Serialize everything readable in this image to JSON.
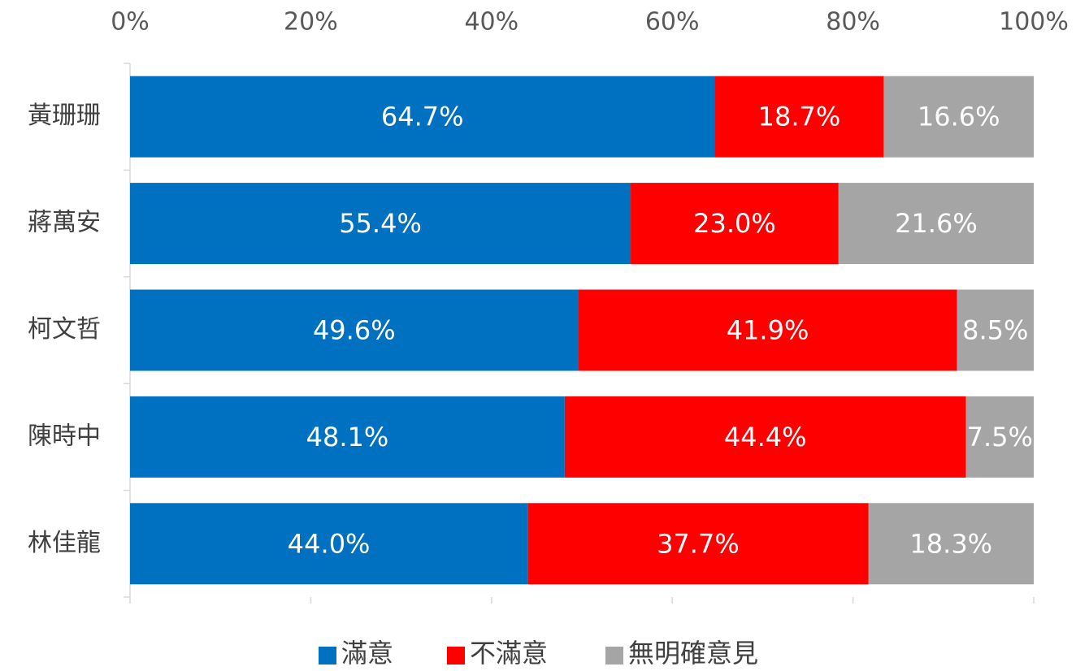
{
  "chart_data": {
    "type": "bar",
    "orientation": "horizontal",
    "stacked": true,
    "categories": [
      "黃珊珊",
      "蔣萬安",
      "柯文哲",
      "陳時中",
      "林佳龍"
    ],
    "series": [
      {
        "name": "滿意",
        "color": "#0070c0",
        "values": [
          64.7,
          55.4,
          49.6,
          48.1,
          44.0
        ],
        "value_labels": [
          "64.7%",
          "55.4%",
          "49.6%",
          "48.1%",
          "44.0%"
        ]
      },
      {
        "name": "不滿意",
        "color": "#ff0000",
        "values": [
          18.7,
          23.0,
          41.9,
          44.4,
          37.7
        ],
        "value_labels": [
          "18.7%",
          "23.0%",
          "41.9%",
          "44.4%",
          "37.7%"
        ]
      },
      {
        "name": "無明確意見",
        "color": "#a5a5a5",
        "values": [
          16.6,
          21.6,
          8.5,
          7.5,
          18.3
        ],
        "value_labels": [
          "16.6%",
          "21.6%",
          "8.5%",
          "7.5%",
          "18.3%"
        ]
      }
    ],
    "xlim": [
      0,
      100
    ],
    "xticks": [
      {
        "value": 0,
        "label": "0%"
      },
      {
        "value": 20,
        "label": "20%"
      },
      {
        "value": 40,
        "label": "40%"
      },
      {
        "value": 60,
        "label": "60%"
      },
      {
        "value": 80,
        "label": "80%"
      },
      {
        "value": 100,
        "label": "100%"
      }
    ],
    "legend": "bottom"
  }
}
